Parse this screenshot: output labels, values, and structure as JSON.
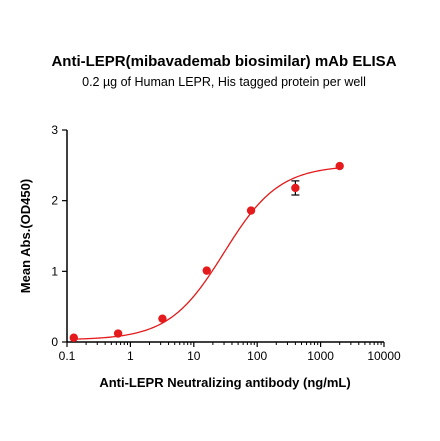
{
  "chart_data": {
    "type": "scatter",
    "title": "Anti-LEPR(mibavademab biosimilar) mAb ELISA",
    "subtitle": "0.2 µg of Human LEPR, His tagged protein per well",
    "xlabel": "Anti-LEPR Neutralizing antibody (ng/mL)",
    "ylabel": "Mean Abs.(OD450)",
    "x_scale": "log",
    "xlim": [
      0.1,
      10000
    ],
    "ylim": [
      0,
      3
    ],
    "x_ticks": [
      0.1,
      1,
      10,
      100,
      1000,
      10000
    ],
    "x_tick_labels": [
      "0.1",
      "1",
      "10",
      "100",
      "1000",
      "10000"
    ],
    "y_ticks": [
      0,
      1,
      2,
      3
    ],
    "y_tick_labels": [
      "0",
      "1",
      "2",
      "3"
    ],
    "grid": false,
    "series": [
      {
        "x": [
          0.128,
          0.64,
          3.2,
          16,
          80,
          400,
          2000
        ],
        "y": [
          0.06,
          0.12,
          0.33,
          1.01,
          1.86,
          2.18,
          2.49
        ],
        "y_err": [
          0.01,
          0.01,
          0.02,
          0.02,
          0.02,
          0.1,
          0.02
        ],
        "color": "#e41a1c",
        "fit": "4PL",
        "fit_params": {
          "bottom": 0.03,
          "top": 2.5,
          "ec50": 30,
          "hill": 1.0
        }
      }
    ]
  }
}
